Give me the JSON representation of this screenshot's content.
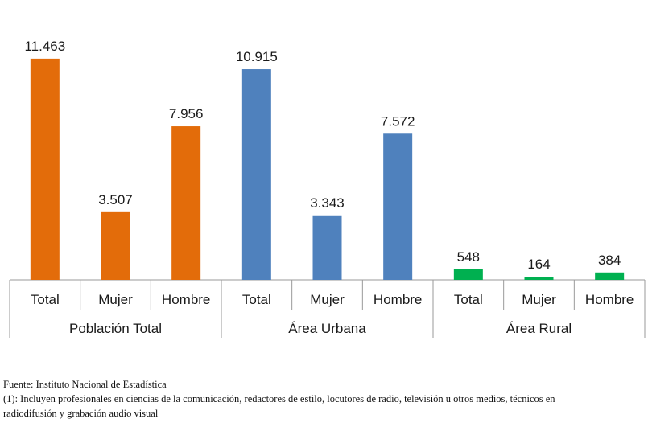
{
  "chart_data": {
    "type": "bar",
    "groups": [
      {
        "name": "Población Total",
        "color": "#E36C0A",
        "categories": [
          "Total",
          "Mujer",
          "Hombre"
        ],
        "values": [
          11463,
          3507,
          7956
        ],
        "labels": [
          "11.463",
          "3.507",
          "7.956"
        ]
      },
      {
        "name": "Área Urbana",
        "color": "#4F81BD",
        "categories": [
          "Total",
          "Mujer",
          "Hombre"
        ],
        "values": [
          10915,
          3343,
          7572
        ],
        "labels": [
          "10.915",
          "3.343",
          "7.572"
        ]
      },
      {
        "name": "Área Rural",
        "color": "#00B050",
        "categories": [
          "Total",
          "Mujer",
          "Hombre"
        ],
        "values": [
          548,
          164,
          384
        ],
        "labels": [
          "548",
          "164",
          "384"
        ]
      }
    ],
    "ylim": [
      0,
      12000
    ],
    "grid": false,
    "legend": "none"
  },
  "footnotes": {
    "source": "Fuente: Instituto Nacional de Estadística",
    "note_line1": "(1): Incluyen profesionales en ciencias de la comunicación, redactores de estilo, locutores de radio, televisión u otros medios, técnicos en",
    "note_line2": "radiodifusión y grabación audio visual"
  }
}
